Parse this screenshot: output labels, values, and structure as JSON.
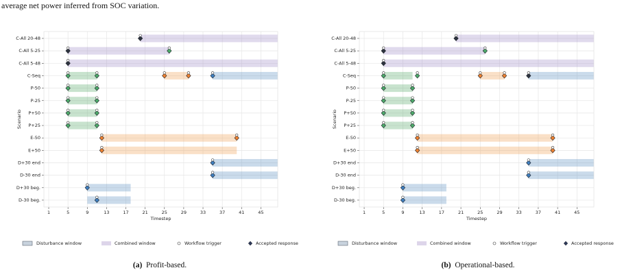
{
  "page_text": "average net power inferred from SOC variation.",
  "chart_data": [
    {
      "type": "timeline",
      "label": "(a)",
      "caption": "Profit-based.",
      "xlabel": "Timestep",
      "ylabel": "Scenario",
      "xlim": [
        0,
        48.5
      ],
      "xticks": [
        1,
        5,
        9,
        13,
        17,
        21,
        25,
        29,
        33,
        37,
        41,
        45
      ],
      "grid": true,
      "legend": [
        "Disturbance window",
        "Combined window",
        "Workflow trigger",
        "Accepted response"
      ],
      "categories": [
        "C-All 20-48",
        "C-All 5-25",
        "C-All 5-48",
        "C-Seq",
        "P-50",
        "P-25",
        "P+50",
        "P+25",
        "E-50",
        "E+50",
        "D+30 end",
        "D-30 end",
        "D+30 beg.",
        "D-30 beg."
      ],
      "rows": [
        {
          "windows": [
            {
              "start": 20,
              "end": 48.5,
              "color": "#a08cc8"
            }
          ],
          "triggers": [
            20
          ],
          "responses": [
            {
              "x": 20,
              "color": "#2e3440"
            }
          ]
        },
        {
          "windows": [
            {
              "start": 5,
              "end": 26,
              "color": "#a08cc8"
            }
          ],
          "triggers": [
            5,
            26
          ],
          "responses": [
            {
              "x": 5,
              "color": "#2e3440"
            },
            {
              "x": 26,
              "color": "#4daa6a"
            }
          ]
        },
        {
          "windows": [
            {
              "start": 5,
              "end": 48.5,
              "color": "#a08cc8"
            }
          ],
          "triggers": [
            5
          ],
          "responses": [
            {
              "x": 5,
              "color": "#2e3440"
            }
          ]
        },
        {
          "windows": [
            {
              "start": 5,
              "end": 11,
              "color": "#55a868"
            },
            {
              "start": 25,
              "end": 30,
              "color": "#f0a050"
            },
            {
              "start": 35,
              "end": 48.5,
              "color": "#5b8fc0"
            }
          ],
          "triggers": [
            5,
            11,
            25,
            30,
            35
          ],
          "responses": [
            {
              "x": 5,
              "color": "#4daa6a"
            },
            {
              "x": 11,
              "color": "#4daa6a"
            },
            {
              "x": 25,
              "color": "#ee8130"
            },
            {
              "x": 30,
              "color": "#ee8130"
            },
            {
              "x": 35,
              "color": "#3f7fbf"
            }
          ]
        },
        {
          "windows": [
            {
              "start": 5,
              "end": 11,
              "color": "#55a868"
            }
          ],
          "triggers": [
            5,
            11
          ],
          "responses": [
            {
              "x": 5,
              "color": "#4daa6a"
            },
            {
              "x": 11,
              "color": "#4daa6a"
            }
          ]
        },
        {
          "windows": [
            {
              "start": 5,
              "end": 11,
              "color": "#55a868"
            }
          ],
          "triggers": [
            5,
            11
          ],
          "responses": [
            {
              "x": 5,
              "color": "#4daa6a"
            },
            {
              "x": 11,
              "color": "#4daa6a"
            }
          ]
        },
        {
          "windows": [
            {
              "start": 5,
              "end": 11,
              "color": "#55a868"
            }
          ],
          "triggers": [
            5,
            11
          ],
          "responses": [
            {
              "x": 5,
              "color": "#4daa6a"
            },
            {
              "x": 11,
              "color": "#4daa6a"
            }
          ]
        },
        {
          "windows": [
            {
              "start": 5,
              "end": 11,
              "color": "#55a868"
            }
          ],
          "triggers": [
            5,
            11
          ],
          "responses": [
            {
              "x": 5,
              "color": "#4daa6a"
            },
            {
              "x": 11,
              "color": "#4daa6a"
            }
          ]
        },
        {
          "windows": [
            {
              "start": 12,
              "end": 40,
              "color": "#f0a050"
            }
          ],
          "triggers": [
            12,
            40
          ],
          "responses": [
            {
              "x": 12,
              "color": "#ee8130"
            },
            {
              "x": 40,
              "color": "#ee8130"
            }
          ]
        },
        {
          "windows": [
            {
              "start": 12,
              "end": 40,
              "color": "#f0a050"
            }
          ],
          "triggers": [
            12
          ],
          "responses": [
            {
              "x": 12,
              "color": "#ee8130"
            }
          ]
        },
        {
          "windows": [
            {
              "start": 35,
              "end": 48.5,
              "color": "#5b8fc0"
            }
          ],
          "triggers": [
            35
          ],
          "responses": [
            {
              "x": 35,
              "color": "#3f7fbf"
            }
          ]
        },
        {
          "windows": [
            {
              "start": 35,
              "end": 48.5,
              "color": "#5b8fc0"
            }
          ],
          "triggers": [
            35
          ],
          "responses": [
            {
              "x": 35,
              "color": "#3f7fbf"
            }
          ]
        },
        {
          "windows": [
            {
              "start": 9,
              "end": 18,
              "color": "#5b8fc0"
            }
          ],
          "triggers": [
            9
          ],
          "responses": [
            {
              "x": 9,
              "color": "#3f7fbf"
            }
          ]
        },
        {
          "windows": [
            {
              "start": 9,
              "end": 18,
              "color": "#5b8fc0"
            }
          ],
          "triggers": [
            11
          ],
          "responses": [
            {
              "x": 11,
              "color": "#3f7fbf"
            }
          ]
        }
      ]
    },
    {
      "type": "timeline",
      "label": "(b)",
      "caption": "Operational-based.",
      "xlabel": "Timestep",
      "ylabel": "Scenario",
      "xlim": [
        0,
        48.5
      ],
      "xticks": [
        1,
        5,
        9,
        13,
        17,
        21,
        25,
        29,
        33,
        37,
        41,
        45
      ],
      "grid": true,
      "legend": [
        "Disturbance window",
        "Combined window",
        "Workflow trigger",
        "Accepted response"
      ],
      "categories": [
        "C-All 20-48",
        "C-All 5-25",
        "C-All 5-48",
        "C-Seq",
        "P-50",
        "P-25",
        "P+50",
        "P+25",
        "E-50",
        "E+50",
        "D+30 end",
        "D-30 end",
        "D+30 beg.",
        "D-30 beg."
      ],
      "rows": [
        {
          "windows": [
            {
              "start": 20,
              "end": 48.5,
              "color": "#a08cc8"
            }
          ],
          "triggers": [
            20
          ],
          "responses": [
            {
              "x": 20,
              "color": "#2e3440"
            }
          ]
        },
        {
          "windows": [
            {
              "start": 5,
              "end": 26,
              "color": "#a08cc8"
            }
          ],
          "triggers": [
            5,
            26
          ],
          "responses": [
            {
              "x": 5,
              "color": "#2e3440"
            },
            {
              "x": 26,
              "color": "#4daa6a"
            }
          ]
        },
        {
          "windows": [
            {
              "start": 5,
              "end": 48.5,
              "color": "#a08cc8"
            }
          ],
          "triggers": [
            5
          ],
          "responses": [
            {
              "x": 5,
              "color": "#2e3440"
            }
          ]
        },
        {
          "windows": [
            {
              "start": 5,
              "end": 11,
              "color": "#55a868"
            },
            {
              "start": 25,
              "end": 30,
              "color": "#f0a050"
            },
            {
              "start": 35,
              "end": 48.5,
              "color": "#5b8fc0"
            }
          ],
          "triggers": [
            5,
            12,
            25,
            30,
            35
          ],
          "responses": [
            {
              "x": 5,
              "color": "#4daa6a"
            },
            {
              "x": 12,
              "color": "#4daa6a"
            },
            {
              "x": 25,
              "color": "#ee8130"
            },
            {
              "x": 30,
              "color": "#ee8130"
            },
            {
              "x": 35,
              "color": "#2e3440"
            }
          ]
        },
        {
          "windows": [
            {
              "start": 5,
              "end": 11,
              "color": "#55a868"
            }
          ],
          "triggers": [
            5,
            11
          ],
          "responses": [
            {
              "x": 5,
              "color": "#4daa6a"
            },
            {
              "x": 11,
              "color": "#4daa6a"
            }
          ]
        },
        {
          "windows": [
            {
              "start": 5,
              "end": 11,
              "color": "#55a868"
            }
          ],
          "triggers": [
            5,
            11
          ],
          "responses": [
            {
              "x": 5,
              "color": "#4daa6a"
            },
            {
              "x": 11,
              "color": "#4daa6a"
            }
          ]
        },
        {
          "windows": [
            {
              "start": 5,
              "end": 11,
              "color": "#55a868"
            }
          ],
          "triggers": [
            5,
            11
          ],
          "responses": [
            {
              "x": 5,
              "color": "#4daa6a"
            },
            {
              "x": 11,
              "color": "#4daa6a"
            }
          ]
        },
        {
          "windows": [
            {
              "start": 5,
              "end": 11,
              "color": "#55a868"
            }
          ],
          "triggers": [
            5,
            11
          ],
          "responses": [
            {
              "x": 5,
              "color": "#4daa6a"
            },
            {
              "x": 11,
              "color": "#4daa6a"
            }
          ]
        },
        {
          "windows": [
            {
              "start": 12,
              "end": 40,
              "color": "#f0a050"
            }
          ],
          "triggers": [
            12,
            40
          ],
          "responses": [
            {
              "x": 12,
              "color": "#ee8130"
            },
            {
              "x": 40,
              "color": "#ee8130"
            }
          ]
        },
        {
          "windows": [
            {
              "start": 12,
              "end": 40,
              "color": "#f0a050"
            }
          ],
          "triggers": [
            12,
            40
          ],
          "responses": [
            {
              "x": 12,
              "color": "#ee8130"
            },
            {
              "x": 40,
              "color": "#ee8130"
            }
          ]
        },
        {
          "windows": [
            {
              "start": 35,
              "end": 48.5,
              "color": "#5b8fc0"
            }
          ],
          "triggers": [
            35
          ],
          "responses": [
            {
              "x": 35,
              "color": "#3f7fbf"
            }
          ]
        },
        {
          "windows": [
            {
              "start": 35,
              "end": 48.5,
              "color": "#5b8fc0"
            }
          ],
          "triggers": [
            35
          ],
          "responses": [
            {
              "x": 35,
              "color": "#3f7fbf"
            }
          ]
        },
        {
          "windows": [
            {
              "start": 9,
              "end": 18,
              "color": "#5b8fc0"
            }
          ],
          "triggers": [
            9
          ],
          "responses": [
            {
              "x": 9,
              "color": "#3f7fbf"
            }
          ]
        },
        {
          "windows": [
            {
              "start": 9,
              "end": 18,
              "color": "#5b8fc0"
            }
          ],
          "triggers": [
            9
          ],
          "responses": [
            {
              "x": 9,
              "color": "#3f7fbf"
            }
          ]
        }
      ]
    }
  ]
}
